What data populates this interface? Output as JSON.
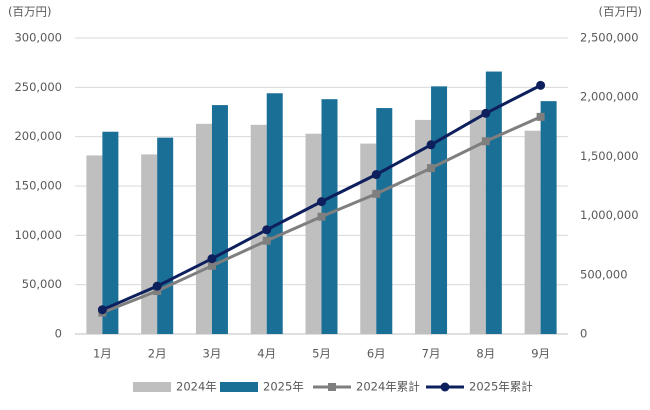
{
  "chart_data": {
    "type": "bar_line",
    "y_label": "(百万円)",
    "y2_label": "(百万円)",
    "categories": [
      "1月",
      "2月",
      "3月",
      "4月",
      "5月",
      "6月",
      "7月",
      "8月",
      "9月"
    ],
    "series": [
      {
        "name": "2024年",
        "type": "bar",
        "color": "#bfbfbf",
        "values": [
          181000,
          182000,
          213000,
          212000,
          203000,
          193000,
          217000,
          227000,
          206000
        ]
      },
      {
        "name": "2025年",
        "type": "bar",
        "color": "#1a6f96",
        "values": [
          205000,
          199000,
          232000,
          244000,
          238000,
          229000,
          251000,
          266000,
          236000
        ]
      },
      {
        "name": "2024年累計",
        "type": "line",
        "axis": "y2",
        "marker": "square",
        "color": "#7f7f7f",
        "values": [
          181000,
          363000,
          576000,
          788000,
          991000,
          1184000,
          1401000,
          1628000,
          1834000
        ]
      },
      {
        "name": "2025年累計",
        "type": "line",
        "axis": "y2",
        "marker": "circle",
        "color": "#0d1f5c",
        "values": [
          205000,
          404000,
          636000,
          880000,
          1118000,
          1347000,
          1598000,
          1864000,
          2100000
        ]
      }
    ],
    "ylim": [
      0,
      300000
    ],
    "yticks": [
      0,
      {
        "value": 50000,
        "label": "50,000"
      },
      {
        "value": 100000,
        "label": "100,000"
      },
      {
        "value": 150000,
        "label": "150,000"
      },
      {
        "value": 200000,
        "label": "200,000"
      },
      {
        "value": 250000,
        "label": "250,000"
      },
      {
        "value": 300000,
        "label": "300,000"
      }
    ],
    "y2lim": [
      0,
      2500000
    ],
    "y2ticks": [
      0,
      {
        "value": 500000,
        "label": "500,000"
      },
      {
        "value": 1000000,
        "label": "1,000,000"
      },
      {
        "value": 1500000,
        "label": "1,500,000"
      },
      {
        "value": 2000000,
        "label": "2,000,000"
      },
      {
        "value": 2500000,
        "label": "2,500,000"
      }
    ],
    "grid": true,
    "legend": "bottom"
  }
}
